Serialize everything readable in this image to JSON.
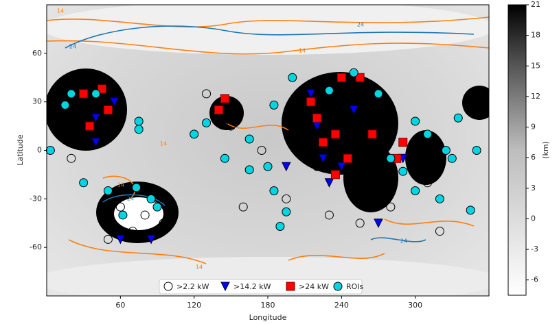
{
  "chart_data": {
    "type": "scatter",
    "xlabel": "Longitude",
    "ylabel": "Latitude",
    "xlim": [
      0,
      360
    ],
    "ylim": [
      -90,
      90
    ],
    "xticks": [
      60,
      120,
      180,
      240,
      300
    ],
    "yticks": [
      -60,
      -30,
      0,
      30,
      60
    ],
    "legend": "lower center",
    "colorbar": {
      "label": "(km)",
      "lim": [
        -7.5,
        21
      ],
      "ticks": [
        -6,
        -3,
        0,
        3,
        6,
        9,
        12,
        15,
        18,
        21
      ]
    },
    "contours": [
      {
        "level": 14,
        "color": "#ff7f0e"
      },
      {
        "level": 24,
        "color": "#1f77b4"
      }
    ],
    "series": [
      {
        "name": ">2.2 kW",
        "marker": "circle-open",
        "color": "#000000",
        "x": [
          5,
          15,
          25,
          35,
          45,
          55,
          20,
          60,
          70,
          80,
          50,
          95,
          90,
          140,
          150,
          130,
          200,
          210,
          220,
          230,
          245,
          260,
          270,
          230,
          255,
          300,
          310,
          320,
          345,
          355,
          195,
          160,
          175,
          280
        ],
        "values": [
          35,
          25,
          10,
          30,
          5,
          20,
          -5,
          -35,
          -50,
          -40,
          -55,
          -45,
          -30,
          25,
          15,
          35,
          30,
          10,
          -10,
          40,
          20,
          5,
          30,
          -40,
          -45,
          0,
          -20,
          -50,
          25,
          35,
          -30,
          -35,
          0,
          -35
        ]
      },
      {
        "name": ">14.2 kW",
        "marker": "triangle-down",
        "color": "#0000ff",
        "x": [
          30,
          40,
          55,
          40,
          60,
          85,
          215,
          220,
          230,
          250,
          240,
          290,
          270,
          195,
          225
        ],
        "values": [
          35,
          20,
          30,
          5,
          -55,
          -55,
          35,
          15,
          -20,
          25,
          -10,
          -5,
          -45,
          -10,
          -5
        ]
      },
      {
        "name": ">24 kW",
        "marker": "square",
        "color": "#ff0000",
        "x": [
          30,
          45,
          50,
          35,
          145,
          140,
          215,
          220,
          225,
          235,
          245,
          240,
          255,
          285,
          290,
          235,
          265
        ],
        "values": [
          35,
          38,
          25,
          15,
          32,
          25,
          30,
          20,
          5,
          10,
          -5,
          45,
          45,
          -5,
          5,
          -15,
          10
        ]
      },
      {
        "name": "ROIs",
        "marker": "circle",
        "color": "#00d5e0",
        "x": [
          15,
          20,
          40,
          75,
          75,
          73,
          62,
          85,
          90,
          120,
          130,
          145,
          165,
          165,
          180,
          185,
          190,
          195,
          185,
          200,
          230,
          250,
          270,
          280,
          290,
          300,
          300,
          310,
          325,
          330,
          320,
          345,
          350,
          335,
          3,
          30,
          50
        ],
        "values": [
          28,
          35,
          35,
          18,
          13,
          -23,
          -40,
          -30,
          -35,
          10,
          17,
          -5,
          -12,
          7,
          -10,
          -25,
          -47,
          -38,
          28,
          45,
          37,
          48,
          35,
          -5,
          -13,
          -25,
          18,
          10,
          0,
          -5,
          -30,
          -37,
          0,
          20,
          0,
          -20,
          -25
        ]
      }
    ]
  }
}
